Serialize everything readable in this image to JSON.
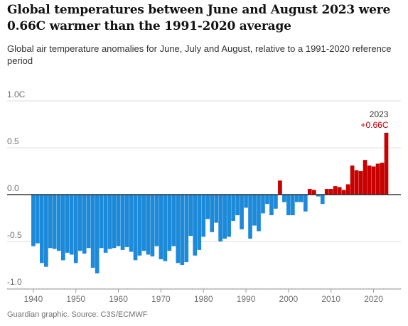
{
  "title": "Global temperatures between June and August 2023 were 0.66C warmer than the 1991-2020 average",
  "subtitle": "Global air temperature anomalies for June, July and August, relative to a 1991-2020 reference period",
  "source": "Guardian graphic. Source: C3S/ECMWF",
  "colors": {
    "negative": "#1c8ad8",
    "positive": "#c70000",
    "zero_line": "#121212",
    "grid": "#dcdcdc",
    "text": "#707070"
  },
  "chart_data": {
    "type": "bar",
    "title": "Global temperatures between June and August 2023 were 0.66C warmer than the 1991-2020 average",
    "subtitle": "Global air temperature anomalies for June, July and August, relative to a 1991-2020 reference period",
    "xlabel": "",
    "ylabel": "",
    "ylim": [
      -1.0,
      1.0
    ],
    "xlim": [
      1937.5,
      2025
    ],
    "grid": "horizontal",
    "y_ticks": [
      {
        "value": 1.0,
        "label": "1.0C"
      },
      {
        "value": 0.5,
        "label": "0.5"
      },
      {
        "value": 0.0,
        "label": "0.0"
      },
      {
        "value": -0.5,
        "label": "-0.5"
      },
      {
        "value": -1.0,
        "label": "-1.0"
      }
    ],
    "x_ticks": [
      1940,
      1950,
      1960,
      1970,
      1980,
      1990,
      2000,
      2010,
      2020
    ],
    "years": [
      1940,
      1941,
      1942,
      1943,
      1944,
      1945,
      1946,
      1947,
      1948,
      1949,
      1950,
      1951,
      1952,
      1953,
      1954,
      1955,
      1956,
      1957,
      1958,
      1959,
      1960,
      1961,
      1962,
      1963,
      1964,
      1965,
      1966,
      1967,
      1968,
      1969,
      1970,
      1971,
      1972,
      1973,
      1974,
      1975,
      1976,
      1977,
      1978,
      1979,
      1980,
      1981,
      1982,
      1983,
      1984,
      1985,
      1986,
      1987,
      1988,
      1989,
      1990,
      1991,
      1992,
      1993,
      1994,
      1995,
      1996,
      1997,
      1998,
      1999,
      2000,
      2001,
      2002,
      2003,
      2004,
      2005,
      2006,
      2007,
      2008,
      2009,
      2010,
      2011,
      2012,
      2013,
      2014,
      2015,
      2016,
      2017,
      2018,
      2019,
      2020,
      2021,
      2022,
      2023
    ],
    "values": [
      -0.55,
      -0.52,
      -0.73,
      -0.77,
      -0.57,
      -0.58,
      -0.6,
      -0.7,
      -0.62,
      -0.64,
      -0.73,
      -0.6,
      -0.63,
      -0.57,
      -0.78,
      -0.84,
      -0.57,
      -0.62,
      -0.58,
      -0.57,
      -0.55,
      -0.59,
      -0.56,
      -0.61,
      -0.7,
      -0.65,
      -0.6,
      -0.64,
      -0.66,
      -0.55,
      -0.69,
      -0.71,
      -0.6,
      -0.55,
      -0.73,
      -0.75,
      -0.72,
      -0.44,
      -0.65,
      -0.59,
      -0.45,
      -0.26,
      -0.4,
      -0.3,
      -0.5,
      -0.47,
      -0.45,
      -0.28,
      -0.22,
      -0.37,
      -0.14,
      -0.47,
      -0.33,
      -0.39,
      -0.2,
      -0.1,
      -0.22,
      -0.15,
      0.15,
      -0.08,
      -0.22,
      -0.22,
      -0.08,
      -0.08,
      -0.18,
      0.06,
      0.05,
      -0.02,
      -0.1,
      0.06,
      0.06,
      0.09,
      0.08,
      0.05,
      0.11,
      0.31,
      0.26,
      0.25,
      0.37,
      0.31,
      0.3,
      0.33,
      0.34,
      0.66
    ],
    "annotations": [
      {
        "year": 2023,
        "label": "2023",
        "value_label": "+0.66C"
      }
    ]
  }
}
